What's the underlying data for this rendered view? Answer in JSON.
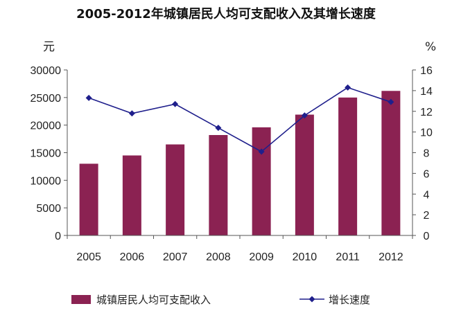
{
  "chart_data": {
    "type": "bar",
    "title": "2005-2012年城镇居民人均可支配收入及其增长速度",
    "categories": [
      "2005",
      "2006",
      "2007",
      "2008",
      "2009",
      "2010",
      "2011",
      "2012"
    ],
    "left_axis": {
      "unit": "元",
      "ylim": [
        0,
        30000
      ],
      "ticks": [
        "0",
        "5000",
        "10000",
        "15000",
        "20000",
        "25000",
        "30000"
      ]
    },
    "right_axis": {
      "unit": "%",
      "ylim": [
        0,
        16
      ],
      "ticks": [
        "0",
        "2",
        "4",
        "6",
        "8",
        "10",
        "12",
        "14",
        "16"
      ]
    },
    "series": [
      {
        "name": "城镇居民人均可支配收入",
        "type": "bar",
        "axis": "left",
        "color": "#8B2252",
        "values": [
          13000,
          14500,
          16500,
          18200,
          19600,
          21900,
          25000,
          26200
        ]
      },
      {
        "name": "增长速度",
        "type": "line",
        "axis": "right",
        "color": "#1F1F8C",
        "values": [
          13.3,
          11.8,
          12.7,
          10.4,
          8.1,
          11.6,
          14.3,
          12.9
        ]
      }
    ],
    "grid": false,
    "legend": "bottom"
  }
}
